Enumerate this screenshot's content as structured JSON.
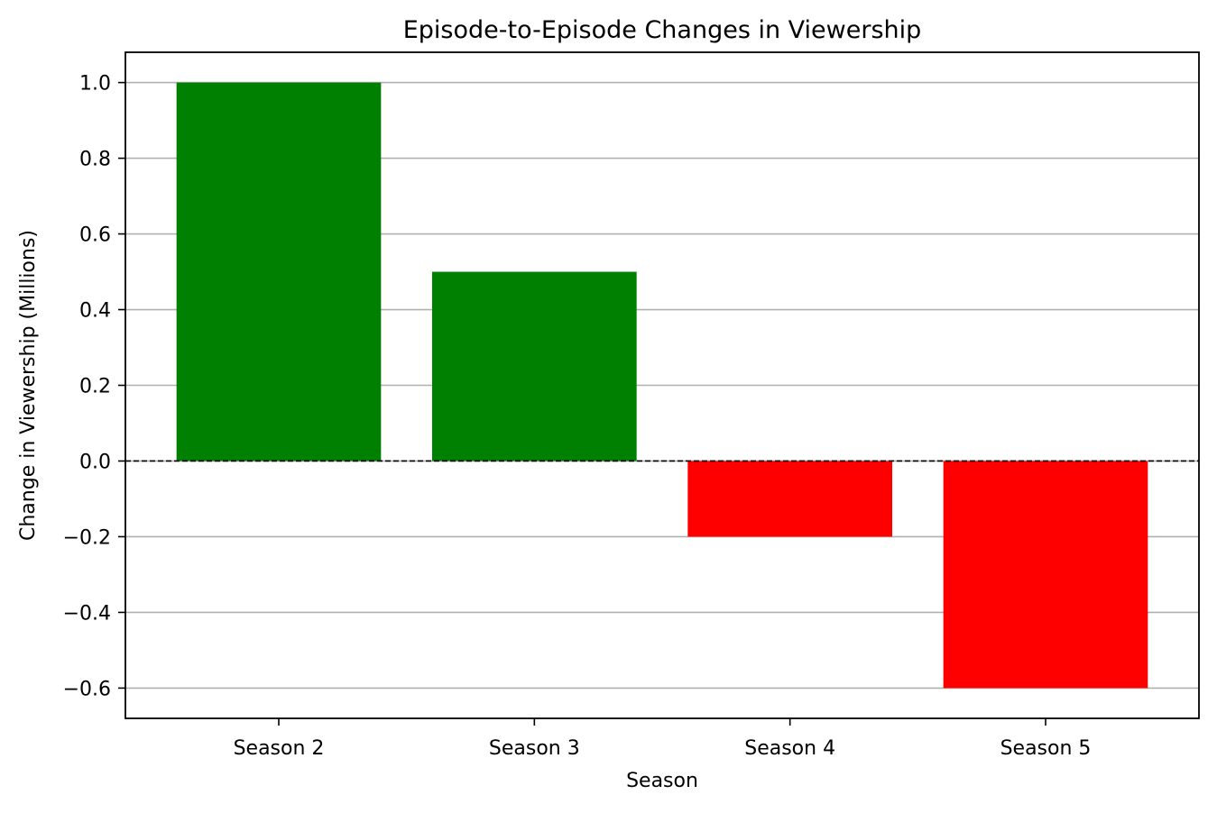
{
  "chart_data": {
    "type": "bar",
    "title": "Episode-to-Episode Changes in Viewership",
    "xlabel": "Season",
    "ylabel": "Change in Viewership (Millions)",
    "categories": [
      "Season 2",
      "Season 3",
      "Season 4",
      "Season 5"
    ],
    "values": [
      1.0,
      0.5,
      -0.2,
      -0.6
    ],
    "bar_colors": [
      "#008000",
      "#008000",
      "#ff0000",
      "#ff0000"
    ],
    "ylim": [
      -0.68,
      1.08
    ],
    "yticks": [
      -0.6,
      -0.4,
      -0.2,
      0.0,
      0.2,
      0.4,
      0.6,
      0.8,
      1.0
    ],
    "ytick_labels": [
      "−0.6",
      "−0.4",
      "−0.2",
      "0.0",
      "0.2",
      "0.4",
      "0.6",
      "0.8",
      "1.0"
    ],
    "grid": "y",
    "grid_color": "#b0b0b0",
    "zero_line": "dashed",
    "legend": "none"
  }
}
